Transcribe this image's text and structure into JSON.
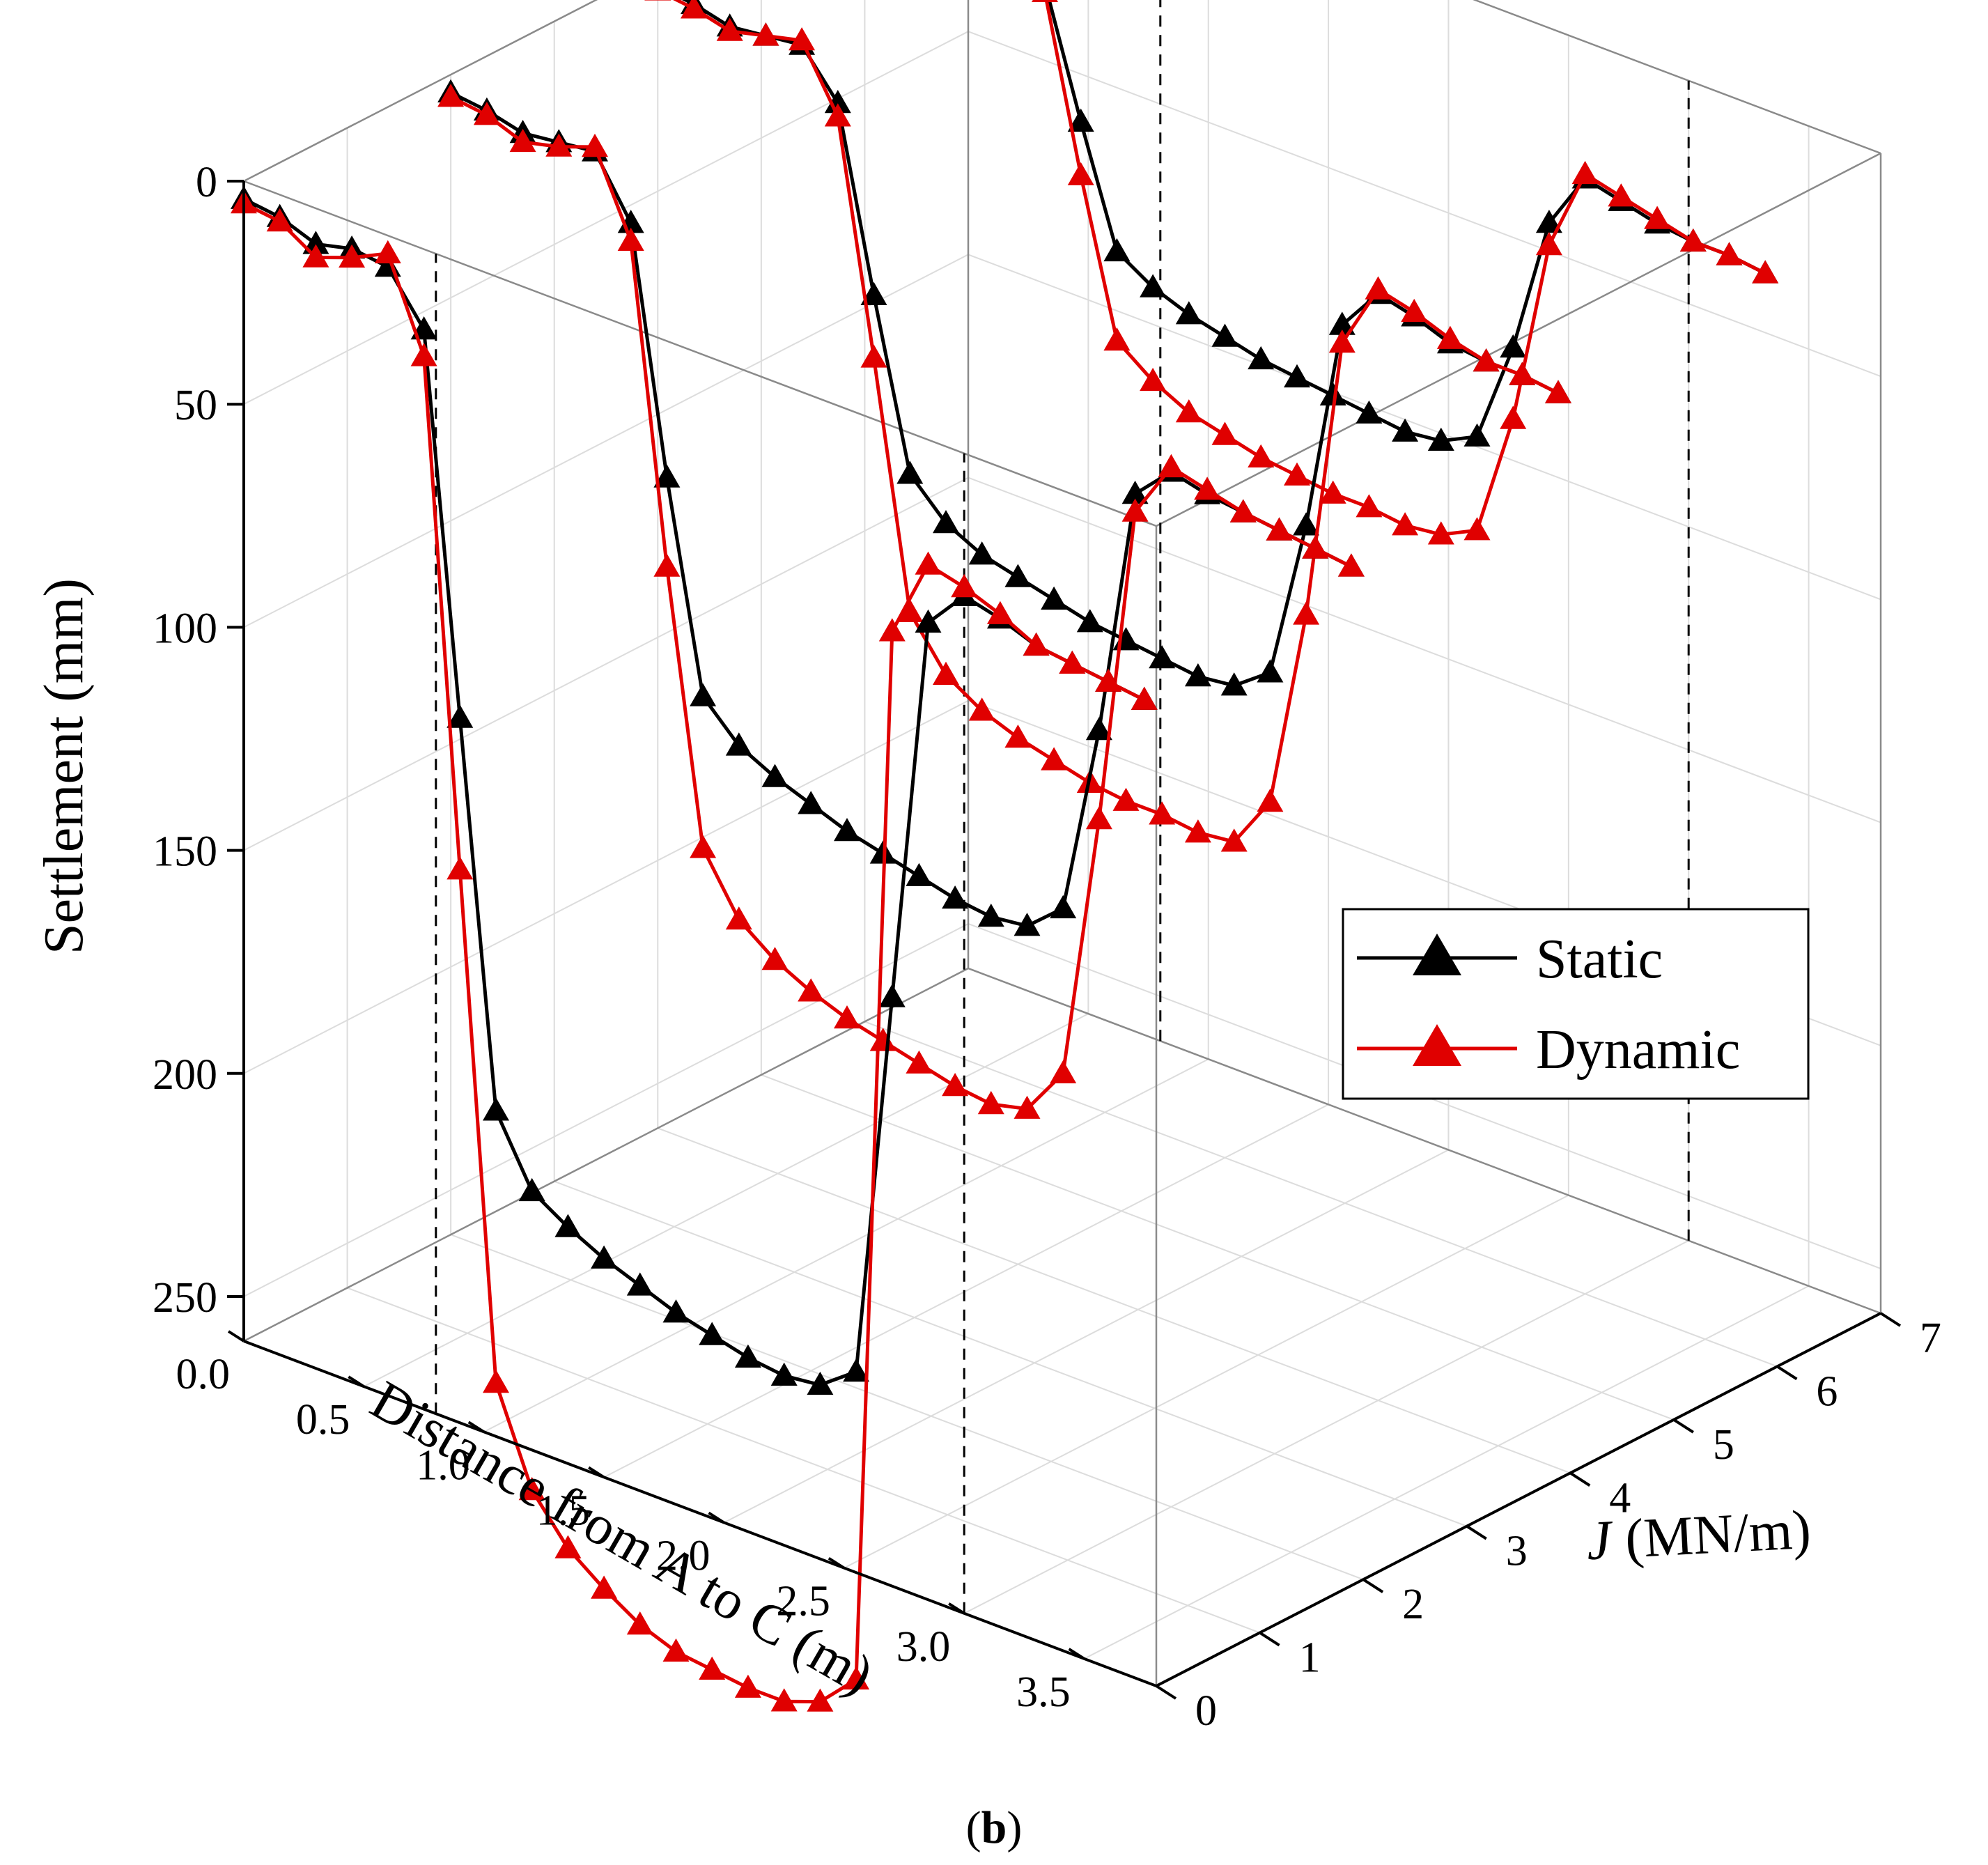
{
  "chart_data": {
    "type": "line3d",
    "title": "",
    "caption": {
      "open": "(",
      "letter": "b",
      "close": ")"
    },
    "x_axis": {
      "label": "Distance from A to C (m)",
      "range": [
        0,
        3.8
      ],
      "ticks": [
        0.0,
        0.5,
        1.0,
        1.5,
        2.0,
        2.5,
        3.0,
        3.5
      ],
      "tick_labels": [
        "0.0",
        "0.5",
        "1.0",
        "1.5",
        "2.0",
        "2.5",
        "3.0",
        "3.5"
      ]
    },
    "y_axis": {
      "label_symbol": "J",
      "label_unit": " (MN/m)",
      "range": [
        0,
        7
      ],
      "ticks": [
        0,
        1,
        2,
        3,
        4,
        5,
        6,
        7
      ],
      "tick_labels": [
        "0",
        "1",
        "2",
        "3",
        "4",
        "5",
        "6",
        "7"
      ]
    },
    "z_axis": {
      "label": "Settlement (mm)",
      "range": [
        0,
        260
      ],
      "inverted": true,
      "ticks": [
        0,
        50,
        100,
        150,
        200,
        250
      ],
      "tick_labels": [
        "0",
        "50",
        "100",
        "150",
        "200",
        "250"
      ]
    },
    "reference_lines_x": [
      0.8,
      3.0
    ],
    "x": [
      0.0,
      0.15,
      0.3,
      0.45,
      0.6,
      0.75,
      0.9,
      1.05,
      1.2,
      1.35,
      1.5,
      1.65,
      1.8,
      1.95,
      2.1,
      2.25,
      2.4,
      2.55,
      2.7,
      2.85,
      3.0,
      3.15,
      3.3,
      3.45,
      3.6,
      3.75
    ],
    "legend": {
      "position": "right",
      "entries": [
        "Static",
        "Dynamic"
      ]
    },
    "series_colors": {
      "Static": "#000000",
      "Dynamic": "#e00000"
    },
    "series": [
      {
        "name": "Static",
        "J": 0,
        "values": [
          4,
          5,
          8,
          6,
          7,
          18,
          102,
          187,
          202,
          207,
          211,
          214,
          217,
          219,
          221,
          222,
          221,
          215,
          128,
          41,
          32,
          34,
          37,
          38,
          39,
          40
        ]
      },
      {
        "name": "Dynamic",
        "J": 0,
        "values": [
          5,
          6,
          11,
          8,
          4,
          24,
          136,
          248,
          269,
          279,
          285,
          290,
          293,
          294,
          295,
          295,
          292,
          284,
          46,
          28,
          30,
          33,
          37,
          38,
          39,
          40
        ]
      },
      {
        "name": "Static",
        "J": 2,
        "values": [
          4,
          5,
          7,
          6,
          5,
          18,
          72,
          118,
          126,
          130,
          133,
          136,
          138,
          140,
          142,
          143,
          142,
          135,
          92,
          36,
          28,
          30,
          31,
          32,
          33,
          34
        ]
      },
      {
        "name": "Dynamic",
        "J": 2,
        "values": [
          5,
          6,
          9,
          7,
          4,
          22,
          92,
          152,
          165,
          171,
          175,
          178,
          180,
          182,
          184,
          185,
          183,
          172,
          112,
          40,
          27,
          29,
          31,
          32,
          33,
          34
        ]
      },
      {
        "name": "Static",
        "J": 4,
        "values": [
          4,
          5,
          7,
          6,
          5,
          15,
          55,
          92,
          100,
          104,
          106,
          108,
          110,
          111,
          112,
          113,
          112,
          106,
          70,
          22,
          12,
          14,
          17,
          18,
          18,
          19
        ]
      },
      {
        "name": "Dynamic",
        "J": 4,
        "values": [
          5,
          6,
          8,
          6,
          4,
          18,
          69,
          123,
          134,
          139,
          142,
          144,
          146,
          147,
          147,
          148,
          147,
          135,
          90,
          26,
          11,
          13,
          16,
          18,
          18,
          19
        ]
      },
      {
        "name": "Static",
        "J": 6,
        "values": [
          4,
          5,
          6,
          5,
          5,
          12,
          40,
          66,
          71,
          74,
          76,
          78,
          79,
          80,
          81,
          82,
          81,
          77,
          54,
          23,
          10,
          12,
          14,
          15,
          15,
          16
        ]
      },
      {
        "name": "Dynamic",
        "J": 6,
        "values": [
          5,
          6,
          7,
          5,
          4,
          14,
          52,
          86,
          92,
          96,
          98,
          100,
          101,
          102,
          102,
          103,
          102,
          98,
          70,
          28,
          9,
          11,
          13,
          15,
          15,
          16
        ]
      }
    ]
  }
}
